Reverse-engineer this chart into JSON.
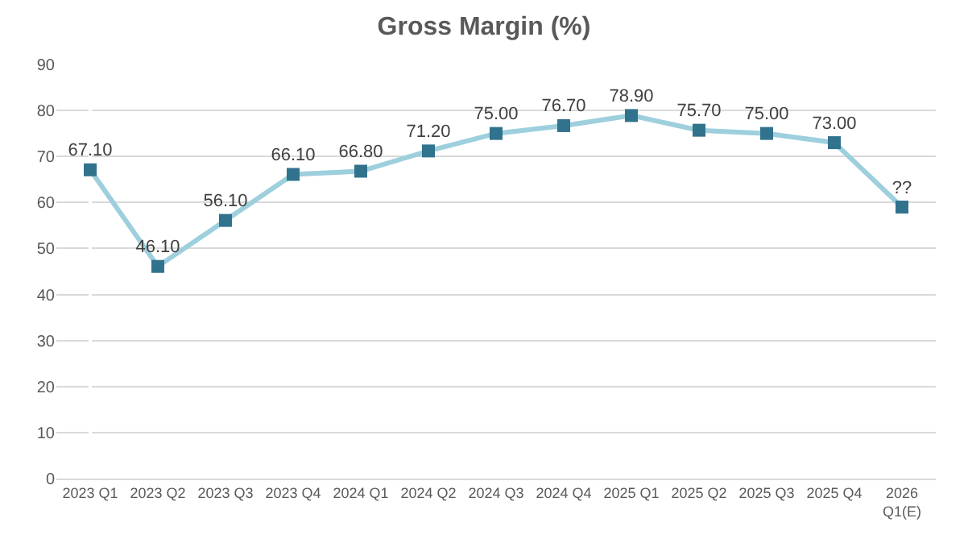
{
  "chart_data": {
    "type": "line",
    "title": "Gross Margin (%)",
    "categories": [
      "2023 Q1",
      "2023 Q2",
      "2023 Q3",
      "2023 Q4",
      "2024 Q1",
      "2024 Q2",
      "2024 Q3",
      "2024 Q4",
      "2025 Q1",
      "2025 Q2",
      "2025 Q3",
      "2025 Q4",
      "2026 Q1(E)"
    ],
    "series": [
      {
        "color": "#9dcfdd",
        "colors": [
          "#31728d",
          "#31728d",
          "#31728d",
          "#31728d",
          "#31728d",
          "#31728d",
          "#31728d",
          "#31728d",
          "#31728d",
          "#31728d",
          "#31728d",
          "#31728d",
          "#31728d"
        ],
        "values": [
          67.1,
          46.1,
          56.1,
          66.1,
          66.8,
          71.2,
          75.0,
          76.7,
          78.9,
          75.7,
          75.0,
          73.0,
          59
        ],
        "value_labels": [
          "67.10",
          "46.10",
          "56.10",
          "66.10",
          "66.80",
          "71.20",
          "75.00",
          "76.70",
          "78.90",
          "75.70",
          "75.00",
          "73.00",
          "??"
        ]
      }
    ],
    "ylim": [
      0,
      90
    ],
    "yticks": [
      0,
      10,
      20,
      30,
      40,
      50,
      60,
      70,
      80,
      90
    ],
    "grid": "y",
    "marker": "square",
    "line_style": "solid"
  }
}
